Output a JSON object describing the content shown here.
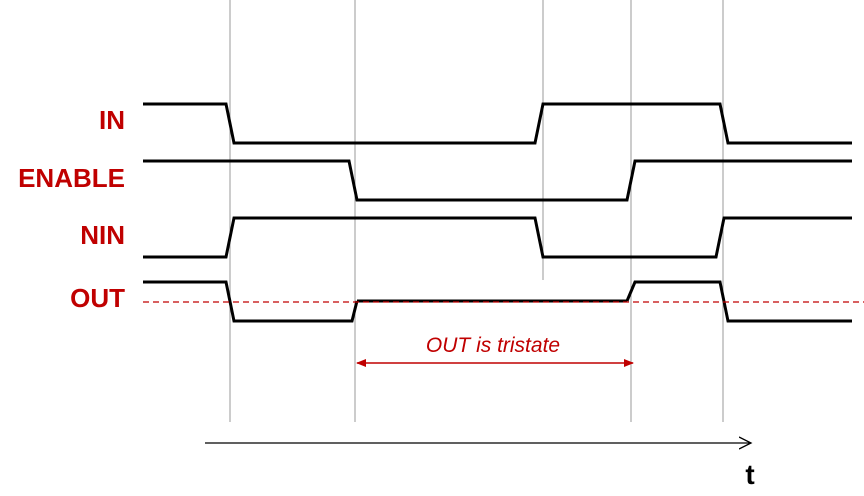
{
  "diagram": {
    "signals": [
      {
        "id": "in",
        "label": "IN"
      },
      {
        "id": "enable",
        "label": "ENABLE"
      },
      {
        "id": "nin",
        "label": "NIN"
      },
      {
        "id": "out",
        "label": "OUT"
      }
    ],
    "annotation": {
      "text": "OUT is tristate"
    },
    "time_axis": {
      "label": "t"
    },
    "colors": {
      "label": "#c00000",
      "waveform": "#000000",
      "guide": "#9a9a9a",
      "annotation": "#c00000"
    }
  }
}
